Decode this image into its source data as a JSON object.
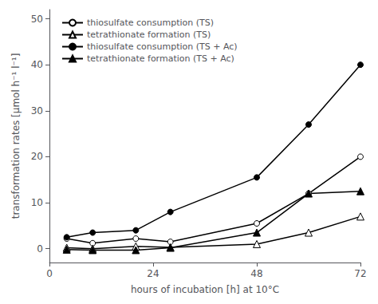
{
  "chart_data": {
    "type": "line",
    "xlabel": "hours of incubation [h] at 10°C",
    "ylabel": "transformation rates [μmol h⁻¹ l⁻¹]",
    "xlim": [
      0,
      72
    ],
    "ylim": [
      -3,
      52
    ],
    "xticks": [
      0,
      24,
      48,
      72
    ],
    "yticks": [
      0,
      10,
      20,
      30,
      40,
      50
    ],
    "grid": false,
    "legend": "upper left",
    "x": [
      4,
      10,
      20,
      28,
      48,
      60,
      72
    ],
    "series": [
      {
        "name": "thiosulfate consumption (TS)",
        "color": "black",
        "marker": "open_circle",
        "line_style": "solid",
        "values": [
          2.2,
          1.2,
          2.2,
          1.5,
          5.5,
          12.0,
          20.0
        ]
      },
      {
        "name": "tetrathionate formation (TS)",
        "color": "black",
        "marker": "open_triangle",
        "line_style": "solid",
        "values": [
          0.2,
          0.0,
          0.5,
          0.3,
          1.0,
          3.5,
          7.0
        ]
      },
      {
        "name": "thiosulfate consumption (TS + Ac)",
        "color": "black",
        "marker": "circle",
        "line_style": "solid",
        "values": [
          2.5,
          3.5,
          4.0,
          8.0,
          15.5,
          27.0,
          40.0
        ]
      },
      {
        "name": "tetrathionate formation (TS + Ac)",
        "color": "black",
        "marker": "triangle",
        "line_style": "solid",
        "values": [
          -0.2,
          -0.3,
          -0.3,
          0.2,
          3.5,
          12.0,
          12.5
        ]
      }
    ]
  }
}
